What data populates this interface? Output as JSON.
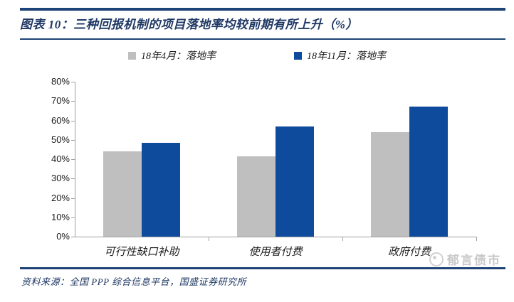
{
  "colors": {
    "navy_rule": "#1e4477",
    "title_navy": "#1f3864",
    "bar_blue": "#0e4b9d",
    "bar_gray": "#bfbfbf",
    "axis_gray": "#a0a0a0",
    "text_dark": "#1a1a1a",
    "watermark_gray": "#c8c8c8"
  },
  "header": {
    "title": "图表 10：三种回报机制的项目落地率均较前期有所上升（%）"
  },
  "chart_data": {
    "type": "bar",
    "title": "三种回报机制的项目落地率均较前期有所上升（%）",
    "categories": [
      "可行性缺口补助",
      "使用者付费",
      "政府付费"
    ],
    "series": [
      {
        "name": "18年4月：落地率",
        "color": "#bfbfbf",
        "values": [
          44.0,
          41.5,
          54.0
        ]
      },
      {
        "name": "18年11月：落地率",
        "color": "#0e4b9d",
        "values": [
          48.6,
          57.0,
          67.0
        ]
      }
    ],
    "ylim": [
      0,
      80
    ],
    "ytick_step": 10,
    "ytick_labels": [
      "0%",
      "10%",
      "20%",
      "30%",
      "40%",
      "50%",
      "60%",
      "70%",
      "80%"
    ],
    "unit": "%",
    "grid": false,
    "legend_position": "top"
  },
  "watermark": {
    "text": "郁言债市",
    "icon": "moon-logo"
  },
  "footer": {
    "source": "资料来源：全国 PPP 综合信息平台，国盛证券研究所"
  }
}
